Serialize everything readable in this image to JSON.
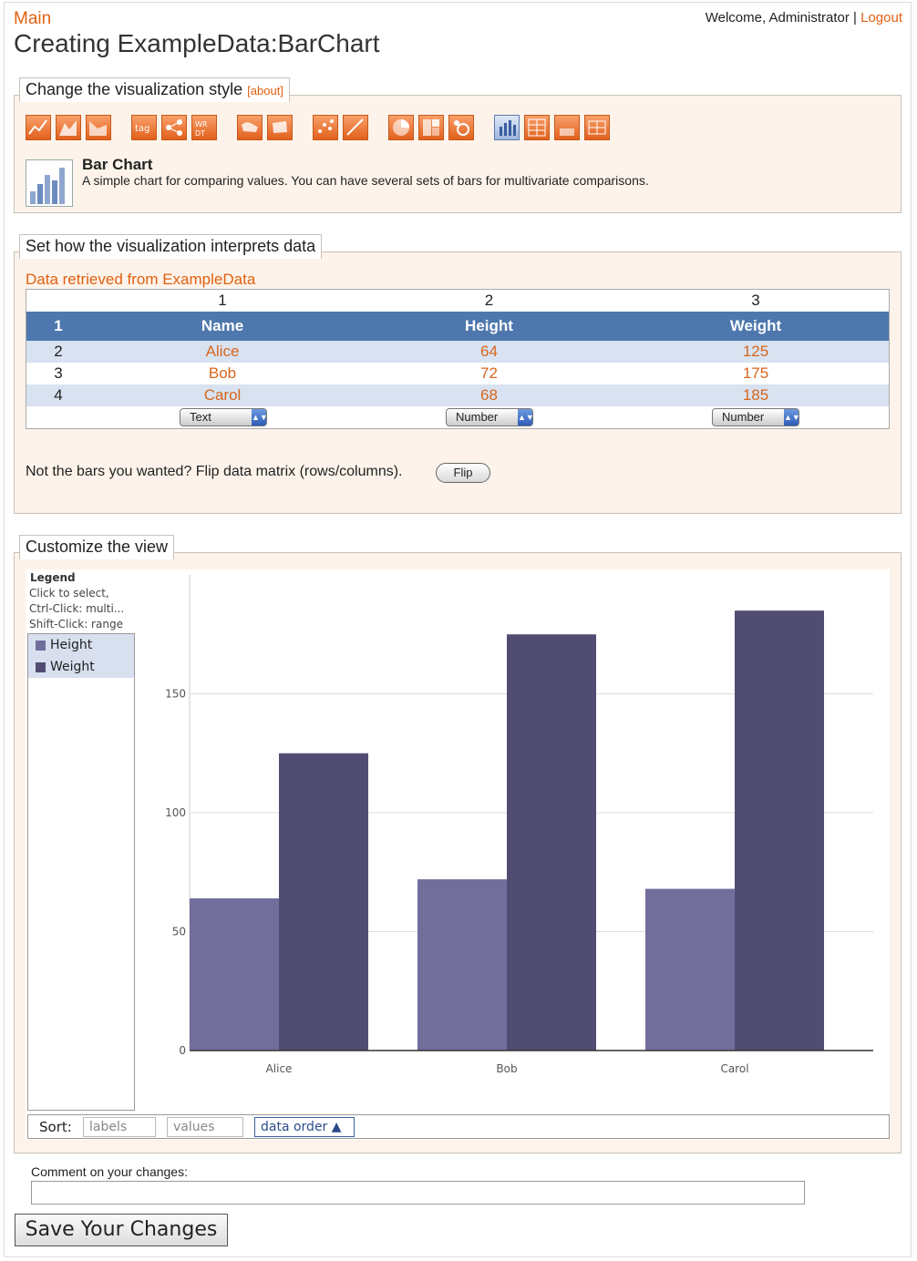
{
  "header": {
    "main_link": "Main",
    "title": "Creating ExampleData:BarChart",
    "welcome": "Welcome, Administrator",
    "separator": "|",
    "logout": "Logout"
  },
  "style_panel": {
    "legend": "Change the visualization style",
    "about": "[about]",
    "selected_name": "Bar Chart",
    "selected_desc": "A simple chart for comparing values. You can have several sets of bars for multivariate comparisons."
  },
  "interpret_panel": {
    "legend": "Set how the visualization interprets data",
    "source": "Data retrieved from ExampleData",
    "col_numbers": [
      "1",
      "2",
      "3"
    ],
    "header_row_num": "1",
    "headers": [
      "Name",
      "Height",
      "Weight"
    ],
    "rows": [
      {
        "num": "2",
        "name": "Alice",
        "height": "64",
        "weight": "125"
      },
      {
        "num": "3",
        "name": "Bob",
        "height": "72",
        "weight": "175"
      },
      {
        "num": "4",
        "name": "Carol",
        "height": "68",
        "weight": "185"
      }
    ],
    "types": [
      "Text",
      "Number",
      "Number"
    ],
    "flip_text": "Not the bars you wanted? Flip data matrix (rows/columns).",
    "flip_button": "Flip"
  },
  "customize_panel": {
    "legend": "Customize the view",
    "legend_title": "Legend",
    "legend_hints": [
      "Click to select,",
      "Ctrl-Click: multi...",
      "Shift-Click: range"
    ],
    "legend_items": [
      "Height",
      "Weight"
    ],
    "sort_label": "Sort:",
    "sort_options": [
      "labels",
      "values",
      "data order ▲"
    ]
  },
  "chart_data": {
    "type": "bar",
    "categories": [
      "Alice",
      "Bob",
      "Carol"
    ],
    "series": [
      {
        "name": "Height",
        "values": [
          64,
          72,
          68
        ],
        "color": "#716e9c"
      },
      {
        "name": "Weight",
        "values": [
          125,
          175,
          185
        ],
        "color": "#514d72"
      }
    ],
    "yticks": [
      0,
      50,
      100,
      150
    ],
    "ylim": [
      0,
      200
    ],
    "grid": true,
    "legend_position": "left"
  },
  "footer": {
    "comment_label": "Comment on your changes:",
    "comment_value": "",
    "save_button": "Save Your Changes"
  }
}
